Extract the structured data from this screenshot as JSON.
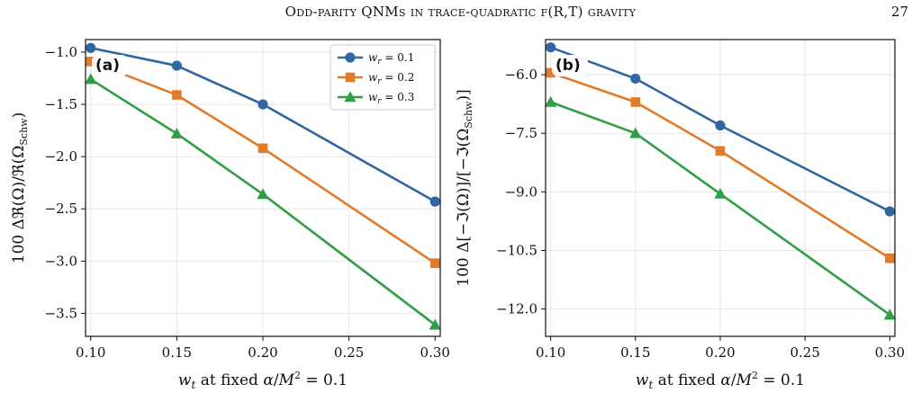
{
  "header": {
    "running_title": "Odd-parity QNMs in trace-quadratic f(R,T) gravity",
    "page_number": "27"
  },
  "colors": {
    "wr_0_1": "#2f66a3",
    "wr_0_2": "#e07b2a",
    "wr_0_3": "#2f9e44",
    "grid": "#e6e6e6"
  },
  "chart_data": [
    {
      "type": "line",
      "panel": "(a)",
      "xlabel": "w_t at fixed α/M² = 0.1",
      "ylabel": "100 ΔℜΩ/ℜ(Ω_Schw)",
      "xlim": [
        0.097,
        0.303
      ],
      "ylim": [
        -3.72,
        -0.88
      ],
      "xticks": [
        0.1,
        0.15,
        0.2,
        0.25,
        0.3
      ],
      "xtick_labels": [
        "0.10",
        "0.15",
        "0.20",
        "0.25",
        "0.30"
      ],
      "yticks": [
        -1.0,
        -1.5,
        -2.0,
        -2.5,
        -3.0,
        -3.5
      ],
      "ytick_labels": [
        "−1.0",
        "−1.5",
        "−2.0",
        "−2.5",
        "−3.0",
        "−3.5"
      ],
      "grid": true,
      "legend_position": "top-right",
      "x": [
        0.1,
        0.15,
        0.2,
        0.3
      ],
      "series": [
        {
          "name": "w_r = 0.1",
          "marker": "circle",
          "values": [
            -0.96,
            -1.13,
            -1.5,
            -2.43
          ]
        },
        {
          "name": "w_r = 0.2",
          "marker": "square",
          "values": [
            -1.09,
            -1.41,
            -1.92,
            -3.02
          ]
        },
        {
          "name": "w_r = 0.3",
          "marker": "triangle",
          "values": [
            -1.26,
            -1.78,
            -2.36,
            -3.61
          ]
        }
      ]
    },
    {
      "type": "line",
      "panel": "(b)",
      "xlabel": "w_t at fixed α/M² = 0.1",
      "ylabel": "100 Δ[−ℑ(Ω)]/[−ℑ(Ω_Schw)]",
      "xlim": [
        0.097,
        0.303
      ],
      "ylim": [
        -12.7,
        -5.1
      ],
      "xticks": [
        0.1,
        0.15,
        0.2,
        0.25,
        0.3
      ],
      "xtick_labels": [
        "0.10",
        "0.15",
        "0.20",
        "0.25",
        "0.30"
      ],
      "yticks": [
        -6.0,
        -7.5,
        -9.0,
        -10.5,
        -12.0
      ],
      "ytick_labels": [
        "−6.0",
        "−7.5",
        "−9.0",
        "−10.5",
        "−12.0"
      ],
      "grid": true,
      "legend_position": "none",
      "x": [
        0.1,
        0.15,
        0.2,
        0.3
      ],
      "series": [
        {
          "name": "w_r = 0.1",
          "marker": "circle",
          "values": [
            -5.3,
            -6.1,
            -7.3,
            -9.5
          ]
        },
        {
          "name": "w_r = 0.2",
          "marker": "square",
          "values": [
            -5.95,
            -6.7,
            -7.95,
            -10.7
          ]
        },
        {
          "name": "w_r = 0.3",
          "marker": "triangle",
          "values": [
            -6.7,
            -7.5,
            -9.05,
            -12.15
          ]
        }
      ]
    }
  ]
}
